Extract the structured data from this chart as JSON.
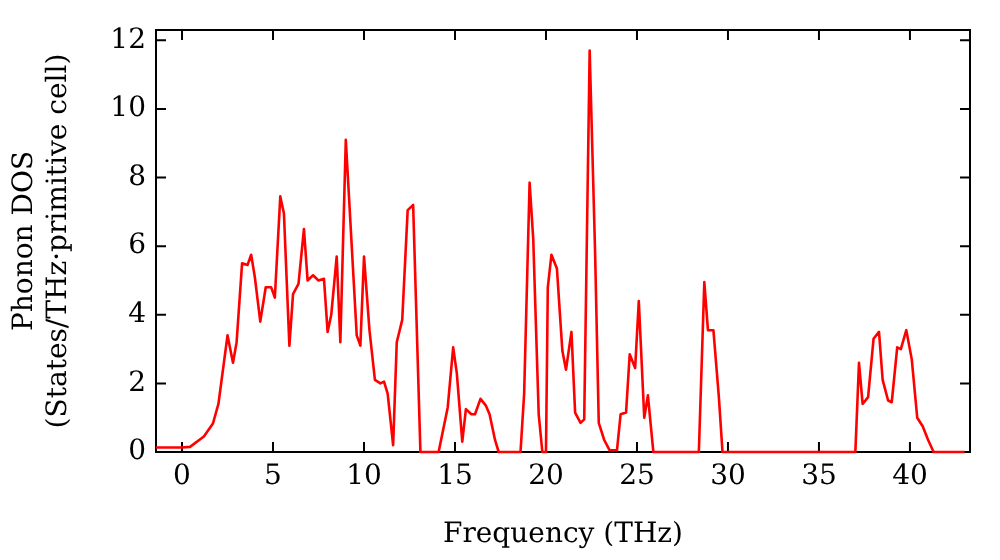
{
  "chart_data": {
    "type": "line",
    "xlabel": "Frequency (THz)",
    "ylabel": "Phonon DOS\n(States/THz·primitive cell)",
    "xlim": [
      -1.43,
      43.3
    ],
    "ylim": [
      0,
      12.3
    ],
    "xticks": [
      0,
      5,
      10,
      15,
      20,
      25,
      30,
      35,
      40
    ],
    "yticks": [
      0,
      2,
      4,
      6,
      8,
      10,
      12
    ],
    "legend": false,
    "marker": "none",
    "line_style": "solid",
    "series": [
      {
        "color": "#ff0000",
        "x": [
          -1.43,
          0,
          0.44,
          1.2,
          1.7,
          2.0,
          2.5,
          2.8,
          3.0,
          3.3,
          3.6,
          3.8,
          4.0,
          4.3,
          4.6,
          4.9,
          5.1,
          5.4,
          5.6,
          5.9,
          6.1,
          6.4,
          6.7,
          6.9,
          7.2,
          7.5,
          7.8,
          8.0,
          8.2,
          8.5,
          8.7,
          9.0,
          9.6,
          9.8,
          10.0,
          10.3,
          10.6,
          10.9,
          11.1,
          11.3,
          11.6,
          11.8,
          12.1,
          12.4,
          12.7,
          13.1,
          14.1,
          14.6,
          14.9,
          15.1,
          15.4,
          15.6,
          15.9,
          16.1,
          16.4,
          16.7,
          16.9,
          17.2,
          17.4,
          18.6,
          18.8,
          19.1,
          19.3,
          19.6,
          19.8,
          20.0,
          20.1,
          20.3,
          20.6,
          20.9,
          21.1,
          21.4,
          21.6,
          21.9,
          22.1,
          22.4,
          22.7,
          22.9,
          23.2,
          23.5,
          23.9,
          24.1,
          24.4,
          24.6,
          24.9,
          25.1,
          25.4,
          25.6,
          25.9,
          28.4,
          28.7,
          28.9,
          29.2,
          29.5,
          29.7,
          37.0,
          37.2,
          37.4,
          37.7,
          38.0,
          38.3,
          38.5,
          38.8,
          39.0,
          39.3,
          39.5,
          39.8,
          40.1,
          40.4,
          40.7,
          41.0,
          41.3,
          43.0
        ],
        "values": [
          0.13,
          0.13,
          0.15,
          0.45,
          0.83,
          1.4,
          3.4,
          2.6,
          3.2,
          5.5,
          5.45,
          5.75,
          5.1,
          3.8,
          4.8,
          4.8,
          4.5,
          7.45,
          6.95,
          3.1,
          4.6,
          4.9,
          6.5,
          5.0,
          5.15,
          5.0,
          5.05,
          3.5,
          4.0,
          5.7,
          3.2,
          9.1,
          3.4,
          3.1,
          5.7,
          3.55,
          2.1,
          2.0,
          2.05,
          1.7,
          0.2,
          3.2,
          3.85,
          7.05,
          7.2,
          0,
          0,
          1.3,
          3.05,
          2.3,
          0.3,
          1.25,
          1.1,
          1.1,
          1.55,
          1.35,
          1.1,
          0.35,
          0,
          0,
          1.7,
          7.85,
          6.2,
          1.1,
          0,
          0,
          4.8,
          5.75,
          5.35,
          2.95,
          2.4,
          3.5,
          1.15,
          0.85,
          0.95,
          11.7,
          5.8,
          0.85,
          0.35,
          0.05,
          0.05,
          1.1,
          1.15,
          2.85,
          2.45,
          4.4,
          1.0,
          1.65,
          0,
          0,
          4.95,
          3.55,
          3.55,
          1.6,
          0,
          0,
          2.6,
          1.4,
          1.6,
          3.3,
          3.5,
          2.1,
          1.5,
          1.45,
          3.05,
          3.0,
          3.55,
          2.7,
          1.0,
          0.75,
          0.35,
          0,
          0
        ]
      }
    ]
  }
}
